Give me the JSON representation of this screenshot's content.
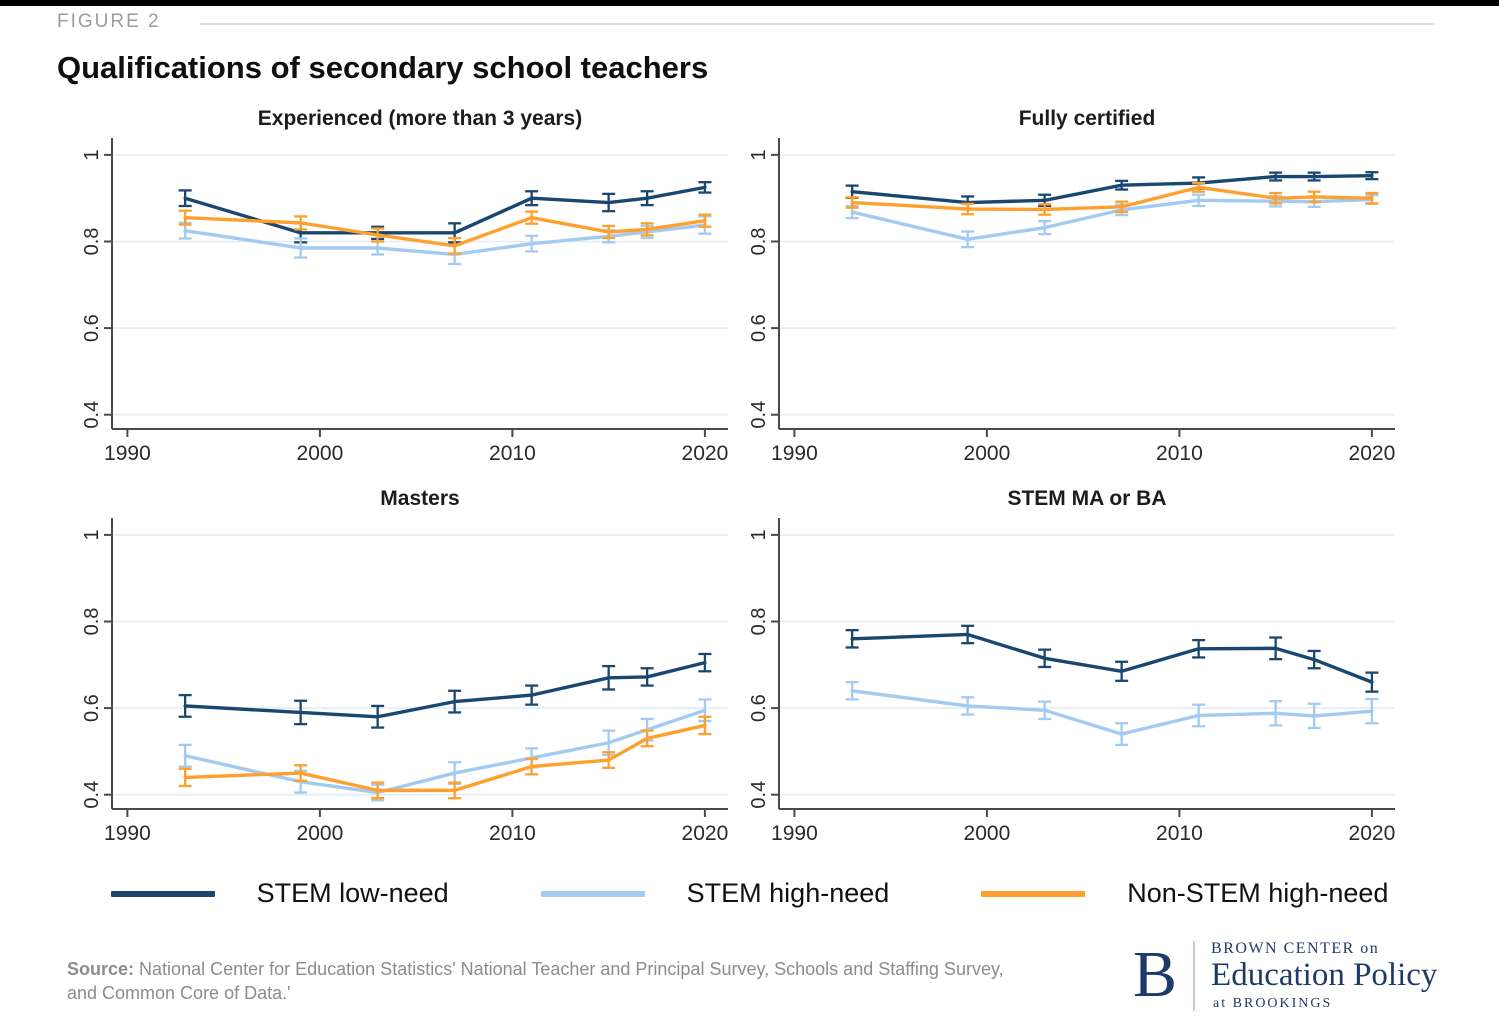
{
  "header": {
    "figure_label": "FIGURE 2",
    "title": "Qualifications of secondary school teachers"
  },
  "legend": {
    "items": [
      {
        "label": "STEM low-need",
        "color": "#1a476f"
      },
      {
        "label": "STEM high-need",
        "color": "#a3cbf1"
      },
      {
        "label": "Non-STEM high-need",
        "color": "#ffa02e"
      }
    ]
  },
  "source": {
    "label": "Source:",
    "text": "National Center for Education Statistics' National Teacher and Principal Survey, Schools and Staffing Survey, and Common Core of Data.'"
  },
  "logo": {
    "initial": "B",
    "line1": "BROWN CENTER on",
    "line2": "Education Policy",
    "line3_prefix": "at",
    "line3_name": "BROOKINGS"
  },
  "chart_style": {
    "grid_color": "#e2ecf5",
    "axis_color": "#4a4a4a",
    "tick_label_color": "#2a2a2a"
  },
  "chart_data": [
    {
      "type": "line",
      "title": "Experienced (more than 3 years)",
      "x": [
        1993,
        1999,
        2003,
        2007,
        2011,
        2015,
        2017,
        2020
      ],
      "xticks": [
        1990,
        2000,
        2010,
        2020
      ],
      "yticks": [
        0.4,
        0.6,
        0.8,
        1
      ],
      "ytick_labels": [
        "0.4",
        "0.6",
        "0.8",
        "1"
      ],
      "x_range": [
        1989.2,
        2021.2
      ],
      "y_range": [
        0.367,
        1.039
      ],
      "grid": true,
      "error_bars": true,
      "legend_position": "bottom-shared",
      "series": [
        {
          "name": "STEM low-need",
          "color": "#1a476f",
          "values": [
            0.9,
            0.82,
            0.82,
            0.82,
            0.9,
            0.89,
            0.9,
            0.925
          ],
          "errors": [
            0.018,
            0.022,
            0.014,
            0.022,
            0.016,
            0.02,
            0.016,
            0.012
          ]
        },
        {
          "name": "STEM high-need",
          "color": "#a3cbf1",
          "values": [
            0.825,
            0.785,
            0.785,
            0.77,
            0.795,
            0.812,
            0.822,
            0.838
          ],
          "errors": [
            0.018,
            0.022,
            0.015,
            0.022,
            0.018,
            0.014,
            0.014,
            0.02
          ]
        },
        {
          "name": "Non-STEM high-need",
          "color": "#ffa02e",
          "values": [
            0.855,
            0.843,
            0.815,
            0.79,
            0.855,
            0.822,
            0.828,
            0.848
          ],
          "errors": [
            0.016,
            0.015,
            0.015,
            0.018,
            0.014,
            0.014,
            0.014,
            0.014
          ]
        }
      ]
    },
    {
      "type": "line",
      "title": "Fully certified",
      "x": [
        1993,
        1999,
        2003,
        2007,
        2011,
        2015,
        2017,
        2020
      ],
      "xticks": [
        1990,
        2000,
        2010,
        2020
      ],
      "yticks": [
        0.4,
        0.6,
        0.8,
        1
      ],
      "ytick_labels": [
        "0.4",
        "0.6",
        "0.8",
        "1"
      ],
      "x_range": [
        1989.2,
        2021.2
      ],
      "y_range": [
        0.367,
        1.039
      ],
      "grid": true,
      "error_bars": true,
      "legend_position": "bottom-shared",
      "series": [
        {
          "name": "STEM low-need",
          "color": "#1a476f",
          "values": [
            0.915,
            0.89,
            0.895,
            0.93,
            0.935,
            0.95,
            0.95,
            0.952
          ],
          "errors": [
            0.014,
            0.014,
            0.013,
            0.01,
            0.013,
            0.009,
            0.009,
            0.008
          ]
        },
        {
          "name": "STEM high-need",
          "color": "#a3cbf1",
          "values": [
            0.868,
            0.805,
            0.832,
            0.873,
            0.895,
            0.893,
            0.892,
            0.897
          ],
          "errors": [
            0.014,
            0.018,
            0.015,
            0.012,
            0.013,
            0.012,
            0.012,
            0.01
          ]
        },
        {
          "name": "Non-STEM high-need",
          "color": "#ffa02e",
          "values": [
            0.89,
            0.875,
            0.874,
            0.88,
            0.925,
            0.9,
            0.903,
            0.9
          ],
          "errors": [
            0.012,
            0.012,
            0.012,
            0.012,
            0.01,
            0.012,
            0.012,
            0.012
          ]
        }
      ]
    },
    {
      "type": "line",
      "title": "Masters",
      "x": [
        1993,
        1999,
        2003,
        2007,
        2011,
        2015,
        2017,
        2020
      ],
      "xticks": [
        1990,
        2000,
        2010,
        2020
      ],
      "yticks": [
        0.4,
        0.6,
        0.8,
        1
      ],
      "ytick_labels": [
        "0.4",
        "0.6",
        "0.8",
        "1"
      ],
      "x_range": [
        1989.2,
        2021.2
      ],
      "y_range": [
        0.367,
        1.039
      ],
      "grid": true,
      "error_bars": true,
      "legend_position": "bottom-shared",
      "series": [
        {
          "name": "STEM low-need",
          "color": "#1a476f",
          "values": [
            0.605,
            0.59,
            0.58,
            0.615,
            0.63,
            0.67,
            0.672,
            0.705
          ],
          "errors": [
            0.025,
            0.027,
            0.025,
            0.025,
            0.022,
            0.027,
            0.02,
            0.02
          ]
        },
        {
          "name": "STEM high-need",
          "color": "#a3cbf1",
          "values": [
            0.49,
            0.43,
            0.405,
            0.45,
            0.485,
            0.52,
            0.55,
            0.595
          ],
          "errors": [
            0.025,
            0.025,
            0.018,
            0.025,
            0.022,
            0.028,
            0.025,
            0.025
          ]
        },
        {
          "name": "Non-STEM high-need",
          "color": "#ffa02e",
          "values": [
            0.44,
            0.45,
            0.41,
            0.41,
            0.465,
            0.48,
            0.53,
            0.56
          ],
          "errors": [
            0.02,
            0.018,
            0.018,
            0.018,
            0.018,
            0.018,
            0.018,
            0.02
          ]
        }
      ]
    },
    {
      "type": "line",
      "title": "STEM MA or BA",
      "x": [
        1993,
        1999,
        2003,
        2007,
        2011,
        2015,
        2017,
        2020
      ],
      "xticks": [
        1990,
        2000,
        2010,
        2020
      ],
      "yticks": [
        0.4,
        0.6,
        0.8,
        1
      ],
      "ytick_labels": [
        "0.4",
        "0.6",
        "0.8",
        "1"
      ],
      "x_range": [
        1989.2,
        2021.2
      ],
      "y_range": [
        0.367,
        1.039
      ],
      "grid": true,
      "error_bars": true,
      "legend_position": "bottom-shared",
      "series": [
        {
          "name": "STEM low-need",
          "color": "#1a476f",
          "values": [
            0.76,
            0.77,
            0.715,
            0.685,
            0.737,
            0.738,
            0.712,
            0.66
          ],
          "errors": [
            0.02,
            0.02,
            0.02,
            0.022,
            0.02,
            0.025,
            0.02,
            0.022
          ]
        },
        {
          "name": "STEM high-need",
          "color": "#a3cbf1",
          "values": [
            0.64,
            0.605,
            0.595,
            0.54,
            0.583,
            0.588,
            0.582,
            0.593
          ],
          "errors": [
            0.02,
            0.02,
            0.02,
            0.025,
            0.025,
            0.028,
            0.028,
            0.028
          ]
        }
      ]
    }
  ]
}
